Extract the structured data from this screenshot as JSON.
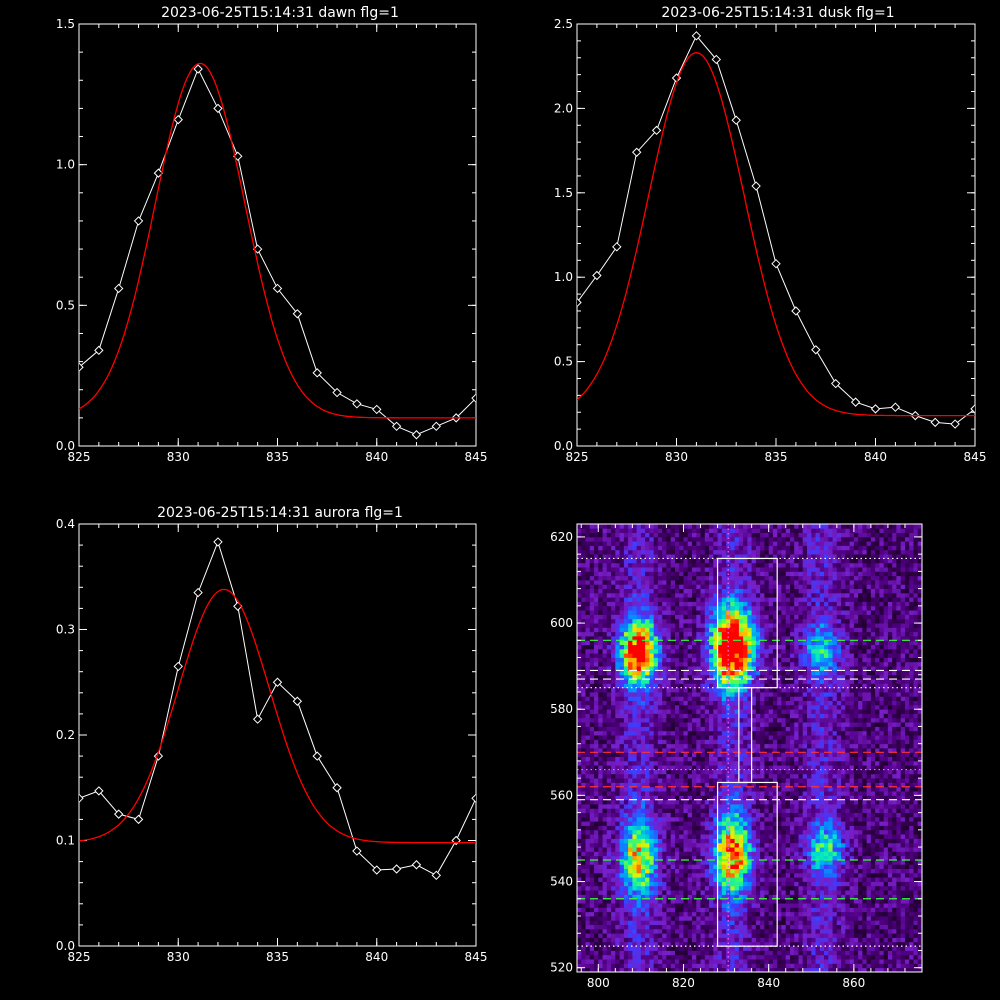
{
  "chart_data": [
    {
      "type": "line",
      "title": "2023-06-25T15:14:31 dawn flg=1",
      "xlim": [
        825,
        845
      ],
      "ylim": [
        0,
        1.5
      ],
      "xticks": [
        "825",
        "830",
        "835",
        "840",
        "845"
      ],
      "yticks": [
        "0.0",
        "0.5",
        "1.0",
        "1.5"
      ],
      "series": [
        {
          "color": "#ffffff",
          "markers": "diamond",
          "x": [
            825,
            826,
            827,
            828,
            829,
            830,
            831,
            832,
            833,
            834,
            835,
            836,
            837,
            838,
            839,
            840,
            841,
            842,
            843,
            844,
            845
          ],
          "y": [
            0.28,
            0.34,
            0.56,
            0.8,
            0.97,
            1.16,
            1.34,
            1.2,
            1.03,
            0.7,
            0.56,
            0.47,
            0.26,
            0.19,
            0.15,
            0.13,
            0.07,
            0.04,
            0.07,
            0.1,
            0.17
          ]
        },
        {
          "color": "#ff0000",
          "fit": "gaussian",
          "peak": 1.26,
          "center": 831.1,
          "sigma": 2.25,
          "base": 0.1
        }
      ]
    },
    {
      "type": "line",
      "title": "2023-06-25T15:14:31 dusk flg=1",
      "xlim": [
        825,
        845
      ],
      "ylim": [
        0,
        2.5
      ],
      "xticks": [
        "825",
        "830",
        "835",
        "840",
        "845"
      ],
      "yticks": [
        "0.0",
        "0.5",
        "1.0",
        "1.5",
        "2.0",
        "2.5"
      ],
      "series": [
        {
          "color": "#ffffff",
          "markers": "diamond",
          "x": [
            825,
            826,
            827,
            828,
            829,
            830,
            831,
            832,
            833,
            834,
            835,
            836,
            837,
            838,
            839,
            840,
            841,
            842,
            843,
            844,
            845
          ],
          "y": [
            0.85,
            1.01,
            1.18,
            1.74,
            1.87,
            2.18,
            2.43,
            2.29,
            1.93,
            1.54,
            1.08,
            0.8,
            0.57,
            0.37,
            0.26,
            0.22,
            0.23,
            0.18,
            0.14,
            0.13,
            0.22
          ]
        },
        {
          "color": "#ff0000",
          "fit": "gaussian",
          "peak": 2.15,
          "center": 831.0,
          "sigma": 2.4,
          "base": 0.18
        }
      ]
    },
    {
      "type": "line",
      "title": "2023-06-25T15:14:31 aurora flg=1",
      "xlim": [
        825,
        845
      ],
      "ylim": [
        0,
        0.4
      ],
      "xticks": [
        "825",
        "830",
        "835",
        "840",
        "845"
      ],
      "yticks": [
        "0.0",
        "0.1",
        "0.2",
        "0.3",
        "0.4"
      ],
      "series": [
        {
          "color": "#ffffff",
          "markers": "diamond",
          "x": [
            825,
            826,
            827,
            828,
            829,
            830,
            831,
            832,
            833,
            834,
            835,
            836,
            837,
            838,
            839,
            840,
            841,
            842,
            843,
            844,
            845
          ],
          "y": [
            0.14,
            0.147,
            0.125,
            0.12,
            0.18,
            0.265,
            0.335,
            0.383,
            0.322,
            0.215,
            0.25,
            0.232,
            0.18,
            0.15,
            0.09,
            0.072,
            0.073,
            0.077,
            0.067,
            0.1,
            0.14
          ]
        },
        {
          "color": "#ff0000",
          "fit": "gaussian",
          "peak": 0.24,
          "center": 832.3,
          "sigma": 2.3,
          "base": 0.098
        }
      ]
    },
    {
      "type": "heatmap",
      "xlim": [
        795,
        876
      ],
      "ylim": [
        519,
        623
      ],
      "xticks": [
        "800",
        "820",
        "840",
        "860"
      ],
      "yticks": [
        "520",
        "540",
        "560",
        "580",
        "600",
        "620"
      ],
      "hot_spots": [
        {
          "x": 809,
          "y": 593,
          "sx": 3,
          "sy": 5,
          "amp": 0.85
        },
        {
          "x": 831,
          "y": 594,
          "sx": 3.5,
          "sy": 6,
          "amp": 1.0
        },
        {
          "x": 809,
          "y": 545,
          "sx": 3,
          "sy": 6,
          "amp": 0.55
        },
        {
          "x": 831,
          "y": 546,
          "sx": 3,
          "sy": 6,
          "amp": 0.7
        },
        {
          "x": 852,
          "y": 593,
          "sx": 3,
          "sy": 4,
          "amp": 0.3
        },
        {
          "x": 853,
          "y": 547,
          "sx": 3,
          "sy": 4,
          "amp": 0.35
        }
      ],
      "boxes": [
        {
          "x0": 828,
          "x1": 842,
          "y0": 585,
          "y1": 615
        },
        {
          "x0": 828,
          "x1": 842,
          "y0": 525,
          "y1": 563
        },
        {
          "x0": 833,
          "x1": 836,
          "y0": 563,
          "y1": 585
        }
      ],
      "vline": {
        "x": 830.5,
        "color": "#ff66ff",
        "style": "dotted"
      },
      "hlines": [
        {
          "y": 615,
          "color": "#ffffff",
          "style": "dotted"
        },
        {
          "y": 596,
          "color": "#33ff33",
          "style": "dashed"
        },
        {
          "y": 589,
          "color": "#ffffff",
          "style": "dashed"
        },
        {
          "y": 587,
          "color": "#ffffff",
          "style": "dashed"
        },
        {
          "y": 585,
          "color": "#ffffff",
          "style": "dotted"
        },
        {
          "y": 570,
          "color": "#ff3333",
          "style": "dashed"
        },
        {
          "y": 566,
          "color": "#ff66ff",
          "style": "dotted"
        },
        {
          "y": 562,
          "color": "#ff3333",
          "style": "dashed"
        },
        {
          "y": 559,
          "color": "#ffffff",
          "style": "dashed"
        },
        {
          "y": 545,
          "color": "#33ff33",
          "style": "dashed"
        },
        {
          "y": 536,
          "color": "#33ff33",
          "style": "dashed"
        },
        {
          "y": 525,
          "color": "#ffffff",
          "style": "dotted"
        }
      ]
    }
  ]
}
